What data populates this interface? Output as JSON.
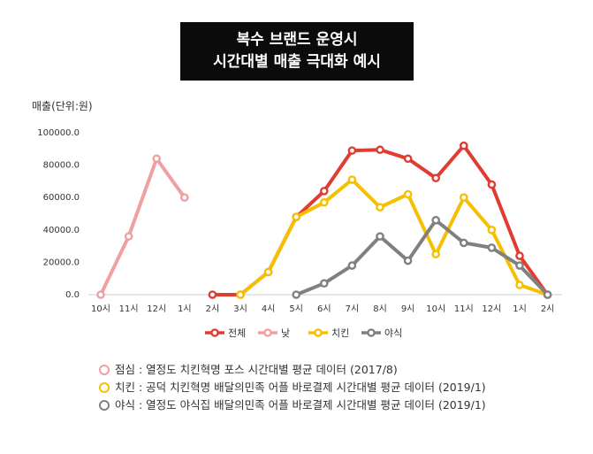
{
  "title": {
    "line1": "복수 브랜드 운영시",
    "line2": "시간대별 매출 극대화 예시"
  },
  "chart_data": {
    "type": "line",
    "ylabel": "매출(단위:원)",
    "ylim": [
      0,
      100000
    ],
    "yticks": [
      "0.0",
      "20000.0",
      "40000.0",
      "60000.0",
      "80000.0",
      "100000.0"
    ],
    "ytick_values": [
      0,
      20000,
      40000,
      60000,
      80000,
      100000
    ],
    "categories": [
      "10시",
      "11시",
      "12시",
      "1시",
      "2시",
      "3시",
      "4시",
      "5시",
      "6시",
      "7시",
      "8시",
      "9시",
      "10시",
      "11시",
      "12시",
      "1시",
      "2시"
    ],
    "grid": false,
    "legend_position": "bottom",
    "series": [
      {
        "name": "전체",
        "color": "#e03c31",
        "values": [
          null,
          null,
          null,
          null,
          0,
          0,
          14000,
          48000,
          64000,
          89000,
          89500,
          84000,
          72000,
          92000,
          68000,
          24000,
          0
        ]
      },
      {
        "name": "낮",
        "color": "#f0a0a0",
        "values": [
          0,
          36000,
          84000,
          60000,
          null,
          null,
          null,
          null,
          null,
          null,
          null,
          null,
          null,
          null,
          null,
          null,
          null
        ]
      },
      {
        "name": "치킨",
        "color": "#f5c000",
        "values": [
          null,
          null,
          null,
          null,
          null,
          0,
          14000,
          48000,
          57000,
          71000,
          54000,
          62000,
          25000,
          60000,
          40000,
          6000,
          0
        ]
      },
      {
        "name": "야식",
        "color": "#808080",
        "values": [
          null,
          null,
          null,
          null,
          null,
          null,
          null,
          0,
          7000,
          18000,
          36000,
          21000,
          46000,
          32000,
          29000,
          18000,
          0
        ]
      }
    ]
  },
  "notes": [
    {
      "text": "점심 : 열정도 치킨혁명 포스 시간대별 평균 데이터 (2017/8)",
      "color": "#f0a0a0"
    },
    {
      "text": "치킨 : 공덕 치킨혁명 배달의민족 어플 바로결제 시간대별 평균 데이터 (2019/1)",
      "color": "#f5c000"
    },
    {
      "text": "야식 : 열정도 야식집 배달의민족 어플 바로결제 시간대별 평균 데이터 (2019/1)",
      "color": "#808080"
    }
  ]
}
